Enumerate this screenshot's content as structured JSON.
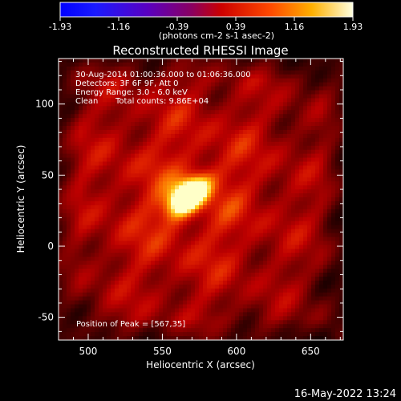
{
  "chart_data": {
    "type": "heatmap",
    "title": "Reconstructed RHESSI Image",
    "xlabel": "Heliocentric X (arcsec)",
    "ylabel": "Heliocentric Y (arcsec)",
    "xlim": [
      480,
      672
    ],
    "ylim": [
      -66,
      132
    ],
    "x_ticks": [
      500,
      550,
      600,
      650
    ],
    "y_ticks": [
      -50,
      0,
      50,
      100
    ],
    "colorbar": {
      "range": [
        -1.93,
        1.93
      ],
      "ticks": [
        "-1.93",
        "-1.16",
        "-0.39",
        "0.39",
        "1.16",
        "1.93"
      ],
      "units": "(photons cm-2 s-1 asec-2)"
    },
    "annotations": {
      "time_range": "30-Aug-2014 01:00:36.000 to 01:06:36.000",
      "detectors": "Detectors: 3F 6F 9F, Att 0",
      "energy": "Energy Range: 3.0 - 6.0 keV",
      "clean": "Clean",
      "total_counts": "Total counts: 9.86E+04",
      "peak_label": "Position of Peak = [567,35]"
    },
    "peak": {
      "x": 567,
      "y": 35
    },
    "colormap": "red-temperature",
    "grid": false
  },
  "footer": {
    "timestamp": "16-May-2022 13:24"
  }
}
